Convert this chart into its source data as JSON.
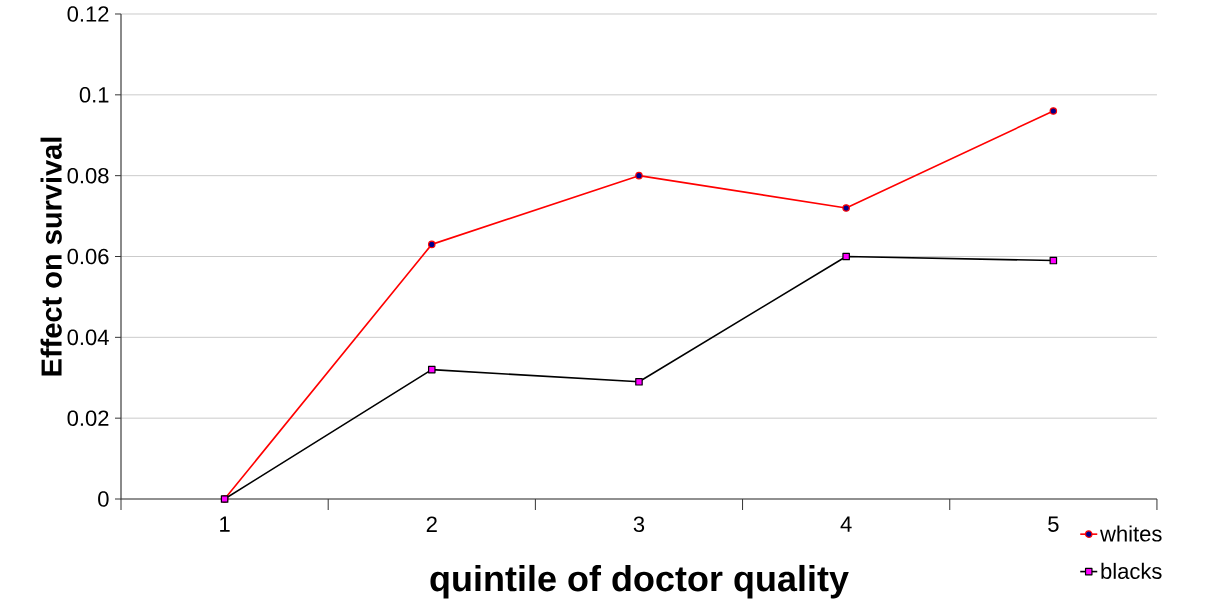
{
  "chart_data": {
    "type": "line",
    "xlabel": "quintile of doctor quality",
    "ylabel": "Effect on survival",
    "categories": [
      "1",
      "2",
      "3",
      "4",
      "5"
    ],
    "series": [
      {
        "name": "whites",
        "color": "#ff0000",
        "marker": "circle",
        "values": [
          0,
          0.063,
          0.08,
          0.072,
          0.096
        ]
      },
      {
        "name": "blacks",
        "color": "#000000",
        "marker": "square",
        "values": [
          0,
          0.032,
          0.029,
          0.06,
          0.059
        ]
      }
    ],
    "ylim": [
      0,
      0.12
    ],
    "yticks": [
      0,
      0.02,
      0.04,
      0.06,
      0.08,
      0.1,
      0.12
    ],
    "grid": "y",
    "legend": "bottom right",
    "line_style": "solid"
  }
}
